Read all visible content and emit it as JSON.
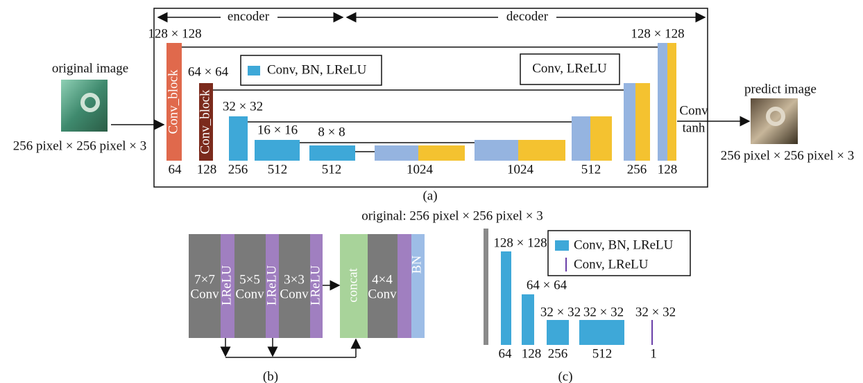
{
  "panel_a": {
    "caption": "(a)",
    "encoder_label": "encoder",
    "decoder_label": "decoder",
    "input_title": "original image",
    "input_size": "256 pixel × 256 pixel × 3",
    "output_title": "predict image",
    "output_size": "256 pixel × 256 pixel × 3",
    "legend_conv_bn": "Conv, BN, LReLU",
    "legend_conv": "Conv, LReLU",
    "output_conv": "Conv",
    "output_tanh": "tanh",
    "block_labels": [
      "Conv_block",
      "Conv_block"
    ],
    "resolutions": [
      "128 × 128",
      "64 × 64",
      "32 × 32",
      "16 × 16",
      "8 × 8",
      "128 × 128"
    ],
    "channels": [
      "64",
      "128",
      "256",
      "512",
      "512",
      "1024",
      "1024",
      "512",
      "256",
      "128"
    ]
  },
  "panel_b": {
    "caption": "(b)",
    "kernels": [
      "7×7",
      "5×5",
      "3×3",
      "4×4"
    ],
    "conv": [
      "Conv",
      "Conv",
      "Conv",
      "Conv"
    ],
    "lrelu": [
      "LReLU",
      "LReLU",
      "LReLU"
    ],
    "concat": "concat",
    "bn": "BN"
  },
  "panel_c": {
    "caption": "(c)",
    "title": "original: 256 pixel × 256 pixel × 3",
    "resolutions": [
      "128 × 128",
      "64 × 64",
      "32 × 32",
      "32 × 32",
      "32 × 32"
    ],
    "channels": [
      "64",
      "128",
      "256",
      "512",
      "1"
    ],
    "legend": [
      "Conv, BN, LReLU",
      "Conv, LReLU"
    ]
  }
}
